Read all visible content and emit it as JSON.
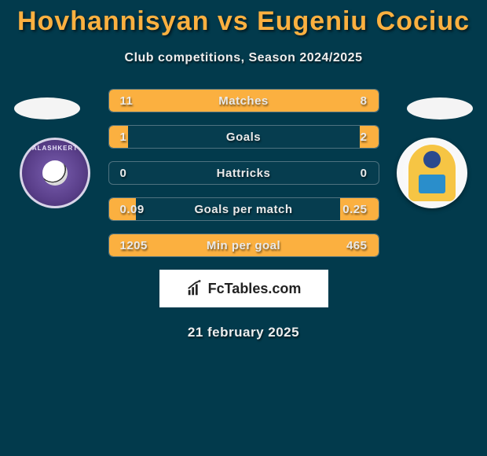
{
  "header": {
    "title": "Hovhannisyan vs Eugeniu Cociuc",
    "subtitle": "Club competitions, Season 2024/2025",
    "title_color": "#fbb040",
    "subtitle_color": "#eeeeee"
  },
  "background_color": "#023a4c",
  "players": {
    "left": {
      "oval_color": "#f4f4f4"
    },
    "right": {
      "oval_color": "#f4f4f4"
    }
  },
  "clubs": {
    "left": {
      "name": "Alashkert",
      "logo_bg": "#5a3f8a",
      "logo_border": "#d8d4e8",
      "arc_text": "ALASHKERT"
    },
    "right": {
      "name": "club-right",
      "logo_bg": "#ffffff",
      "inner_color": "#f6c544"
    }
  },
  "stats": {
    "bar_fill_color": "#fbb040",
    "bar_border_color": "#4e7280",
    "label_color": "#eaeaea",
    "rows": [
      {
        "label": "Matches",
        "left": "11",
        "right": "8",
        "left_pct": 50,
        "right_pct": 50
      },
      {
        "label": "Goals",
        "left": "1",
        "right": "2",
        "left_pct": 7,
        "right_pct": 7
      },
      {
        "label": "Hattricks",
        "left": "0",
        "right": "0",
        "left_pct": 0,
        "right_pct": 0
      },
      {
        "label": "Goals per match",
        "left": "0.09",
        "right": "0.25",
        "left_pct": 10,
        "right_pct": 14
      },
      {
        "label": "Min per goal",
        "left": "1205",
        "right": "465",
        "left_pct": 50,
        "right_pct": 50
      }
    ]
  },
  "brand": {
    "text": "FcTables.com",
    "box_bg": "#ffffff",
    "text_color": "#222222"
  },
  "date": {
    "text": "21 february 2025",
    "color": "#eeeeee"
  }
}
